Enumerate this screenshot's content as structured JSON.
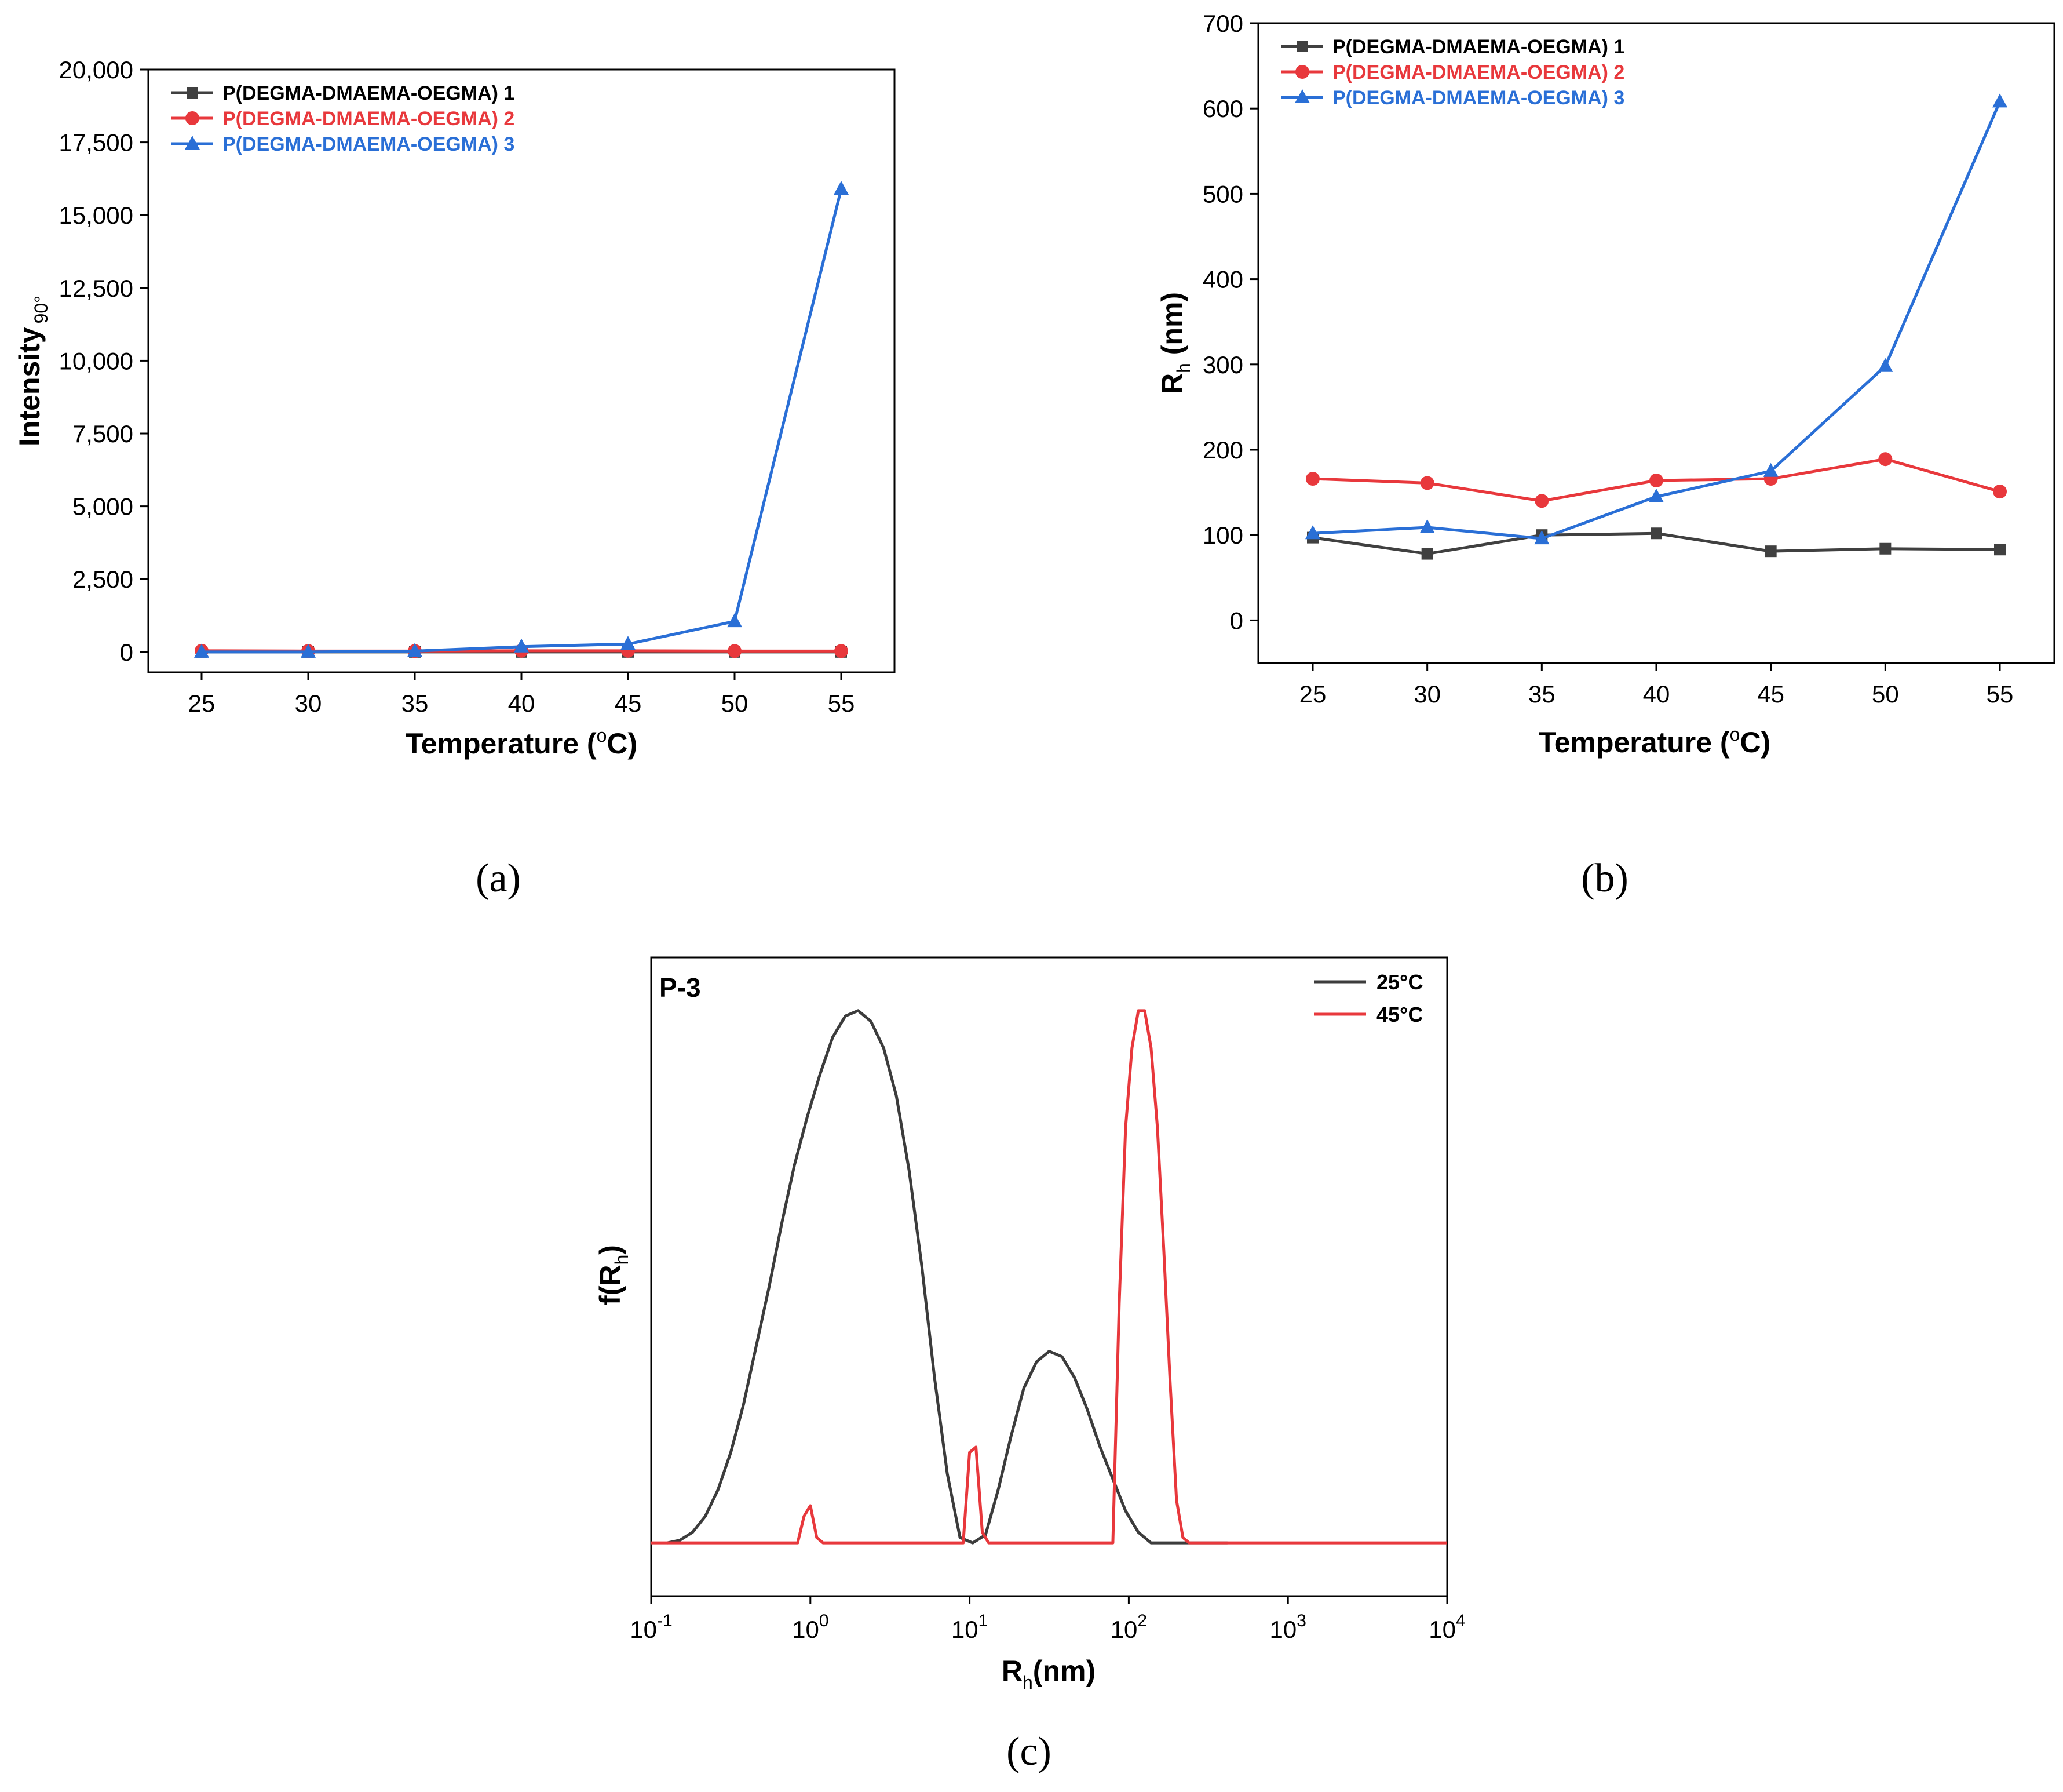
{
  "chart_data": [
    {
      "type": "line",
      "panel_label": "(a)",
      "xlabel": "Temperature (",
      "xlabel_sup": "o",
      "xlabel_end": "C)",
      "ylabel": "Intensity",
      "ylabel_sub": "90°",
      "x": [
        25,
        30,
        35,
        40,
        45,
        50,
        55
      ],
      "x_tick_labels": [
        "25",
        "30",
        "35",
        "40",
        "45",
        "50",
        "55"
      ],
      "ylim": [
        -700,
        20000
      ],
      "y_ticks": [
        0,
        2500,
        5000,
        7500,
        10000,
        12500,
        15000,
        17500,
        20000
      ],
      "y_tick_labels": [
        "0",
        "2,500",
        "5,000",
        "7,500",
        "10,000",
        "12,500",
        "15,000",
        "17,500",
        "20,000"
      ],
      "legend_position": "top-left",
      "series": [
        {
          "name": "P(DEGMA-DMAEMA-OEGMA) 1",
          "color": "#404040",
          "marker": "square",
          "values": [
            0,
            0,
            0,
            0,
            0,
            0,
            0
          ]
        },
        {
          "name": "P(DEGMA-DMAEMA-OEGMA) 2",
          "color": "#e8383c",
          "marker": "circle",
          "values": [
            40,
            30,
            30,
            40,
            40,
            30,
            30
          ]
        },
        {
          "name": "P(DEGMA-DMAEMA-OEGMA) 3",
          "color": "#2a6fd6",
          "marker": "triangle",
          "values": [
            0,
            0,
            30,
            180,
            270,
            1050,
            15900
          ]
        }
      ]
    },
    {
      "type": "line",
      "panel_label": "(b)",
      "xlabel": "Temperature (",
      "xlabel_sup": "o",
      "xlabel_end": "C)",
      "ylabel": "R",
      "ylabel_sub": "h",
      "ylabel_end": " (nm)",
      "x": [
        25,
        30,
        35,
        40,
        45,
        50,
        55
      ],
      "x_tick_labels": [
        "25",
        "30",
        "35",
        "40",
        "45",
        "50",
        "55"
      ],
      "ylim": [
        -50,
        700
      ],
      "y_ticks": [
        0,
        100,
        200,
        300,
        400,
        500,
        600,
        700
      ],
      "y_tick_labels": [
        "0",
        "100",
        "200",
        "300",
        "400",
        "500",
        "600",
        "700"
      ],
      "legend_position": "top-left",
      "series": [
        {
          "name": "P(DEGMA-DMAEMA-OEGMA) 1",
          "color": "#404040",
          "marker": "square",
          "values": [
            97,
            78,
            100,
            102,
            81,
            84,
            83
          ]
        },
        {
          "name": "P(DEGMA-DMAEMA-OEGMA) 2",
          "color": "#e8383c",
          "marker": "circle",
          "values": [
            166,
            161,
            140,
            164,
            166,
            189,
            151
          ]
        },
        {
          "name": "P(DEGMA-DMAEMA-OEGMA) 3",
          "color": "#2a6fd6",
          "marker": "triangle",
          "values": [
            102,
            109,
            96,
            145,
            175,
            298,
            608
          ]
        }
      ]
    },
    {
      "type": "line",
      "panel_label": "(c)",
      "annotation": "P-3",
      "xlabel": "R",
      "xlabel_sub": "h",
      "xlabel_end": "(nm)",
      "ylabel": "f(R",
      "ylabel_sub": "h",
      "ylabel_end": ")",
      "xscale": "log",
      "xlim_log10": [
        -1,
        4
      ],
      "ylim": [
        -0.1,
        1.1
      ],
      "x_tick_bases": [
        "10",
        "10",
        "10",
        "10",
        "10",
        "10"
      ],
      "x_tick_exps": [
        "-1",
        "0",
        "1",
        "2",
        "3",
        "4"
      ],
      "legend_position": "top-right",
      "series": [
        {
          "name": "25°C",
          "color": "#3c3c3c",
          "log10_x": [
            -0.9,
            -0.82,
            -0.74,
            -0.66,
            -0.58,
            -0.5,
            -0.42,
            -0.34,
            -0.26,
            -0.18,
            -0.1,
            -0.02,
            0.06,
            0.14,
            0.22,
            0.3,
            0.38,
            0.46,
            0.54,
            0.62,
            0.7,
            0.78,
            0.86,
            0.94,
            1.02,
            1.1,
            1.18,
            1.26,
            1.34,
            1.42,
            1.5,
            1.58,
            1.66,
            1.74,
            1.82,
            1.9,
            1.98,
            2.06,
            2.14,
            2.22,
            2.3,
            2.38,
            2.46,
            2.54,
            2.62
          ],
          "values": [
            0,
            0.005,
            0.02,
            0.05,
            0.1,
            0.17,
            0.26,
            0.37,
            0.48,
            0.6,
            0.71,
            0.8,
            0.88,
            0.95,
            0.99,
            1.0,
            0.98,
            0.93,
            0.84,
            0.7,
            0.52,
            0.31,
            0.13,
            0.01,
            0.0,
            0.015,
            0.1,
            0.2,
            0.29,
            0.34,
            0.36,
            0.35,
            0.31,
            0.25,
            0.18,
            0.12,
            0.06,
            0.02,
            0.0,
            0.0,
            0.0,
            0.0,
            0.0,
            0.0,
            0.0
          ]
        },
        {
          "name": "45°C",
          "color": "#e8383c",
          "log10_x": [
            -1,
            -0.08,
            -0.04,
            0.0,
            0.04,
            0.08,
            0.96,
            1.0,
            1.04,
            1.08,
            1.12,
            1.9,
            1.94,
            1.98,
            2.02,
            2.06,
            2.1,
            2.14,
            2.18,
            2.22,
            2.26,
            2.3,
            2.34,
            2.38,
            2.42,
            2.46,
            2.5,
            4.0
          ],
          "values": [
            0,
            0,
            0.05,
            0.07,
            0.01,
            0,
            0,
            0.17,
            0.18,
            0.02,
            0,
            0,
            0.45,
            0.78,
            0.93,
            1.0,
            1.0,
            0.93,
            0.78,
            0.55,
            0.3,
            0.08,
            0.01,
            0,
            0,
            0,
            0,
            0
          ]
        }
      ]
    }
  ]
}
